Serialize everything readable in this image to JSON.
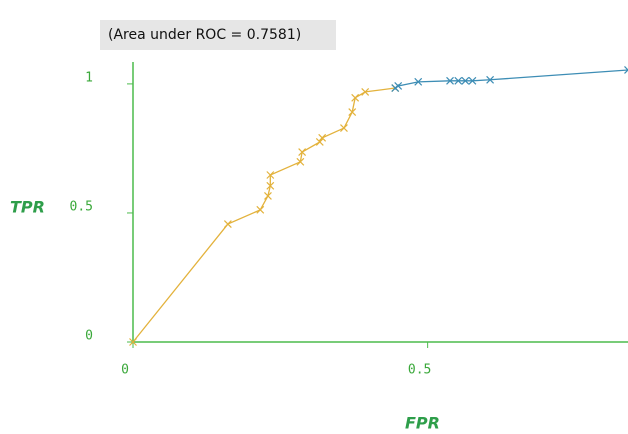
{
  "chart_data": {
    "type": "line",
    "title": "(Area under ROC = 0.7581)",
    "x_label": "FPR",
    "y_label": "TPR",
    "xlim": [
      0,
      0.84
    ],
    "ylim": [
      0,
      1.05
    ],
    "xticks": [
      0,
      0.5
    ],
    "yticks": [
      0,
      0.5,
      1
    ],
    "series": [
      {
        "color": "#e3b23c",
        "x": [
          0,
          0.161,
          0.216,
          0.229,
          0.233,
          0.233,
          0.284,
          0.287,
          0.317,
          0.321,
          0.358,
          0.372,
          0.377,
          0.394,
          0.445
        ],
        "values": [
          0,
          0.457,
          0.512,
          0.566,
          0.605,
          0.647,
          0.698,
          0.736,
          0.775,
          0.791,
          0.829,
          0.891,
          0.946,
          0.969,
          0.984
        ]
      },
      {
        "color": "#3d8db5",
        "x": [
          0.445,
          0.45,
          0.484,
          0.538,
          0.552,
          0.564,
          0.576,
          0.606,
          0.84
        ],
        "values": [
          0.984,
          0.992,
          1.008,
          1.012,
          1.012,
          1.012,
          1.012,
          1.016,
          1.054
        ]
      }
    ]
  }
}
